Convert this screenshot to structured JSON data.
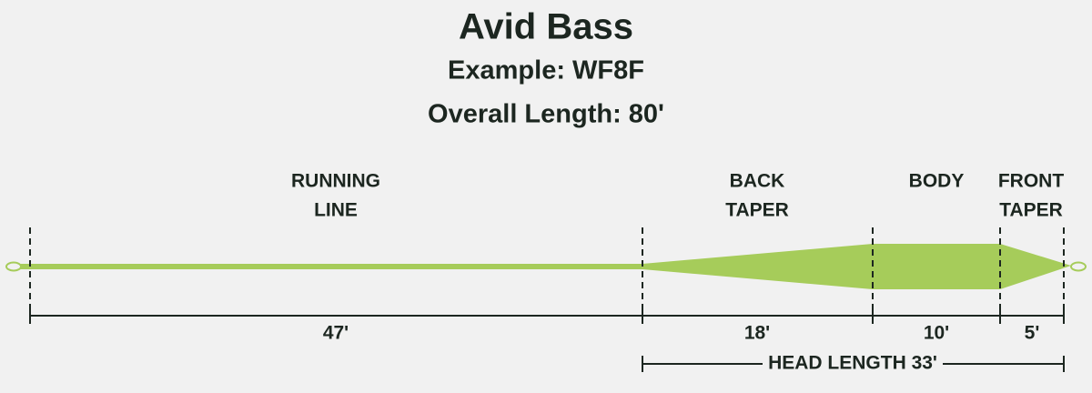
{
  "header": {
    "title": "Avid Bass",
    "example": "Example: WF8F",
    "overall_length": "Overall Length: 80'"
  },
  "sections": [
    {
      "label_lines": [
        "RUNNING",
        "LINE"
      ],
      "length": "47'"
    },
    {
      "label_lines": [
        "BACK",
        "TAPER"
      ],
      "length": "18'"
    },
    {
      "label_lines": [
        "BODY"
      ],
      "length": "10'"
    },
    {
      "label_lines": [
        "FRONT",
        "TAPER"
      ],
      "length": "5'"
    }
  ],
  "head_length": "HEAD LENGTH 33'"
}
